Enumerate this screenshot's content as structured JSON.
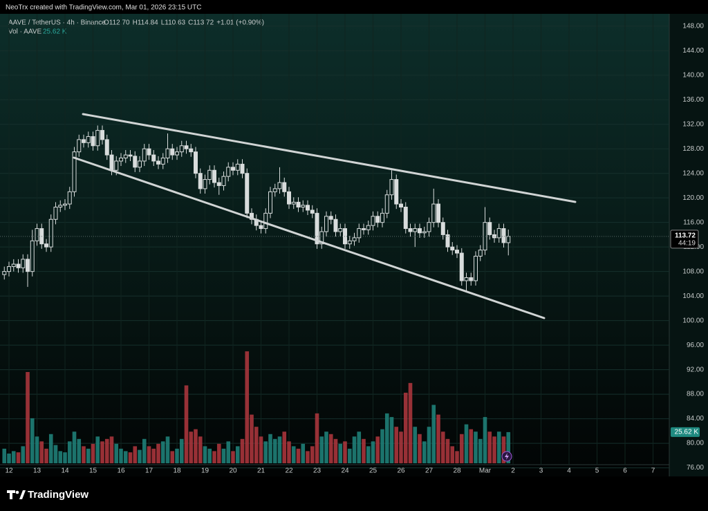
{
  "header": "NeoTrx created with TradingView.com, Mar 01, 2026 23:15 UTC",
  "footer": "TradingView",
  "chart_data": {
    "type": "candlestick",
    "symbol": "AAVE / TetherUS · 4h · Binance",
    "ohlc_legend": [
      "O112.70",
      "H114.84",
      "L110.63",
      "C113.72",
      "+1.01 (+0.90%)"
    ],
    "volume_title": "Vol · AAVE",
    "volume_label": "25.62 K",
    "countdown": "44:19",
    "x_labels": [
      "12",
      "13",
      "14",
      "15",
      "16",
      "17",
      "18",
      "19",
      "20",
      "21",
      "22",
      "23",
      "24",
      "25",
      "26",
      "27",
      "28",
      "Mar",
      "2",
      "3",
      "4",
      "5",
      "6",
      "7"
    ],
    "open": [
      107.5,
      108.0,
      108.8,
      109.2,
      108.6,
      110.0,
      108.0,
      113.0,
      115.0,
      112.5,
      112.0,
      116.5,
      118.5,
      118.8,
      119.0,
      121.0,
      127.5,
      129.5,
      129.0,
      130.0,
      128.5,
      131.0,
      129.5,
      127.0,
      124.5,
      126.0,
      126.5,
      127.0,
      126.8,
      125.0,
      126.0,
      128.0,
      127.0,
      126.0,
      125.5,
      126.5,
      128.0,
      127.0,
      127.5,
      128.5,
      128.0,
      127.5,
      124.0,
      121.5,
      123.0,
      124.5,
      122.5,
      122.0,
      123.5,
      125.0,
      124.5,
      125.5,
      124.0,
      117.5,
      116.5,
      115.5,
      115.0,
      117.5,
      121.0,
      121.5,
      122.5,
      121.0,
      119.0,
      119.3,
      118.5,
      118.8,
      118.0,
      117.5,
      112.5,
      114.5,
      117.0,
      116.5,
      114.5,
      115.0,
      112.5,
      113.0,
      113.5,
      115.0,
      114.8,
      115.5,
      117.0,
      116.0,
      117.5,
      120.5,
      123.0,
      119.0,
      118.5,
      115.0,
      114.5,
      115.0,
      114.3,
      114.5,
      116.0,
      119.0,
      116.0,
      114.0,
      112.0,
      111.5,
      111.0,
      106.5,
      107.0,
      106.5,
      110.5,
      111.5,
      116.0,
      114.0,
      113.5,
      115.0,
      112.7
    ],
    "high": [
      108.8,
      109.6,
      110.0,
      110.0,
      110.8,
      110.8,
      114.8,
      115.8,
      115.8,
      113.3,
      117.3,
      119.3,
      119.6,
      119.8,
      121.8,
      128.3,
      130.3,
      130.3,
      130.8,
      130.8,
      131.8,
      131.8,
      130.3,
      127.8,
      126.8,
      127.3,
      127.8,
      127.8,
      127.6,
      126.8,
      128.8,
      128.8,
      127.8,
      126.8,
      127.3,
      130.5,
      128.8,
      128.3,
      129.3,
      129.3,
      128.8,
      128.3,
      124.8,
      123.8,
      125.3,
      125.3,
      123.3,
      124.3,
      125.8,
      125.8,
      126.3,
      126.3,
      124.8,
      118.3,
      117.3,
      116.3,
      118.3,
      121.8,
      122.3,
      125.0,
      123.3,
      121.8,
      120.1,
      120.1,
      119.6,
      119.6,
      118.8,
      118.3,
      115.3,
      117.8,
      117.8,
      117.3,
      115.8,
      115.8,
      113.8,
      114.3,
      115.8,
      115.8,
      116.3,
      117.8,
      117.8,
      118.3,
      121.3,
      124.5,
      123.8,
      119.8,
      119.3,
      115.8,
      115.8,
      115.8,
      115.3,
      116.8,
      121.5,
      119.8,
      116.8,
      114.8,
      112.8,
      112.3,
      111.8,
      107.8,
      107.8,
      111.3,
      112.3,
      118.5,
      116.8,
      114.8,
      115.8,
      115.8,
      114.84
    ],
    "low": [
      106.7,
      107.2,
      108.0,
      107.8,
      107.8,
      105.5,
      107.2,
      112.2,
      111.7,
      111.2,
      111.2,
      115.7,
      117.7,
      118.0,
      118.2,
      120.2,
      126.7,
      128.2,
      128.2,
      127.7,
      127.7,
      128.7,
      126.2,
      123.7,
      123.7,
      125.2,
      125.7,
      126.0,
      124.2,
      124.2,
      125.2,
      126.2,
      125.2,
      124.7,
      124.7,
      125.7,
      126.2,
      126.2,
      126.7,
      127.2,
      126.7,
      123.2,
      120.7,
      120.7,
      122.2,
      121.7,
      120.5,
      121.2,
      122.7,
      123.7,
      123.7,
      123.2,
      116.7,
      115.7,
      114.7,
      114.2,
      114.2,
      116.7,
      120.2,
      120.7,
      120.2,
      118.2,
      118.2,
      117.7,
      117.7,
      117.2,
      116.7,
      111.7,
      111.7,
      113.7,
      115.7,
      113.7,
      113.7,
      111.7,
      111.7,
      112.2,
      112.7,
      114.0,
      114.0,
      114.7,
      115.2,
      115.2,
      116.7,
      119.7,
      118.2,
      117.7,
      114.2,
      113.7,
      112.0,
      113.5,
      113.5,
      113.7,
      115.2,
      115.2,
      113.2,
      111.2,
      110.7,
      110.2,
      105.7,
      104.8,
      105.7,
      105.7,
      109.7,
      110.7,
      113.2,
      112.7,
      112.7,
      111.9,
      110.63
    ],
    "close": [
      108.0,
      108.8,
      109.2,
      108.6,
      110.0,
      108.0,
      113.0,
      115.0,
      112.5,
      112.0,
      116.5,
      118.5,
      118.8,
      119.0,
      121.0,
      127.5,
      129.5,
      129.0,
      130.0,
      128.5,
      131.0,
      129.5,
      127.0,
      124.5,
      126.0,
      126.5,
      127.0,
      126.8,
      125.0,
      126.0,
      128.0,
      127.0,
      126.0,
      125.5,
      126.5,
      128.0,
      127.0,
      127.5,
      128.5,
      128.0,
      127.5,
      124.0,
      121.5,
      123.0,
      124.5,
      122.5,
      122.0,
      123.5,
      125.0,
      124.5,
      125.5,
      124.0,
      117.5,
      116.5,
      115.5,
      115.0,
      117.5,
      121.0,
      121.5,
      122.5,
      121.0,
      119.0,
      119.3,
      118.5,
      118.8,
      118.0,
      117.5,
      112.5,
      114.5,
      117.0,
      116.5,
      114.5,
      115.0,
      112.5,
      113.0,
      113.5,
      115.0,
      114.8,
      115.5,
      117.0,
      116.0,
      117.5,
      120.5,
      123.0,
      119.0,
      118.5,
      115.0,
      114.5,
      115.0,
      114.3,
      114.5,
      116.0,
      119.0,
      116.0,
      114.0,
      112.0,
      111.5,
      111.0,
      106.5,
      107.0,
      106.5,
      110.5,
      111.5,
      116.0,
      114.0,
      113.5,
      115.0,
      112.7,
      113.72
    ],
    "volume": [
      12,
      8,
      10,
      9,
      14,
      75,
      37,
      22,
      18,
      12,
      24,
      15,
      10,
      9,
      18,
      26,
      20,
      14,
      12,
      16,
      22,
      18,
      20,
      22,
      16,
      12,
      10,
      9,
      14,
      11,
      20,
      14,
      12,
      16,
      18,
      22,
      10,
      12,
      20,
      64,
      26,
      28,
      22,
      14,
      12,
      10,
      16,
      12,
      18,
      10,
      14,
      20,
      92,
      40,
      30,
      22,
      18,
      24,
      20,
      22,
      26,
      18,
      14,
      12,
      16,
      10,
      14,
      41,
      22,
      26,
      24,
      20,
      16,
      18,
      12,
      22,
      26,
      20,
      14,
      18,
      22,
      28,
      41,
      38,
      30,
      26,
      58,
      66,
      30,
      24,
      18,
      30,
      48,
      40,
      26,
      20,
      14,
      10,
      24,
      32,
      28,
      26,
      20,
      38,
      26,
      22,
      26,
      22,
      25.62
    ],
    "up_color": "#d8dcdc",
    "down_color": "#d8dcdc",
    "volume_up_color": "#1f7f78",
    "volume_down_color": "#a8353c",
    "ylim": [
      74.6,
      150.0
    ],
    "yticks": [
      {
        "value": 148,
        "label": "148.00"
      },
      {
        "value": 144,
        "label": "144.00"
      },
      {
        "value": 140,
        "label": "140.00"
      },
      {
        "value": 136,
        "label": "136.00"
      },
      {
        "value": 132,
        "label": "132.00"
      },
      {
        "value": 128,
        "label": "128.00"
      },
      {
        "value": 124,
        "label": "124.00"
      },
      {
        "value": 120,
        "label": "120.00"
      },
      {
        "value": 116,
        "label": "116.00"
      },
      {
        "value": 112,
        "label": "112.00"
      },
      {
        "value": 108,
        "label": "108.00"
      },
      {
        "value": 104,
        "label": "104.00"
      },
      {
        "value": 100,
        "label": "100.00"
      },
      {
        "value": 96,
        "label": "96.00"
      },
      {
        "value": 92,
        "label": "92.00"
      },
      {
        "value": 88,
        "label": "88.00"
      },
      {
        "value": 84,
        "label": "84.00"
      },
      {
        "value": 80,
        "label": "80.00"
      },
      {
        "value": 76,
        "label": "76.00"
      }
    ],
    "grid": true
  }
}
